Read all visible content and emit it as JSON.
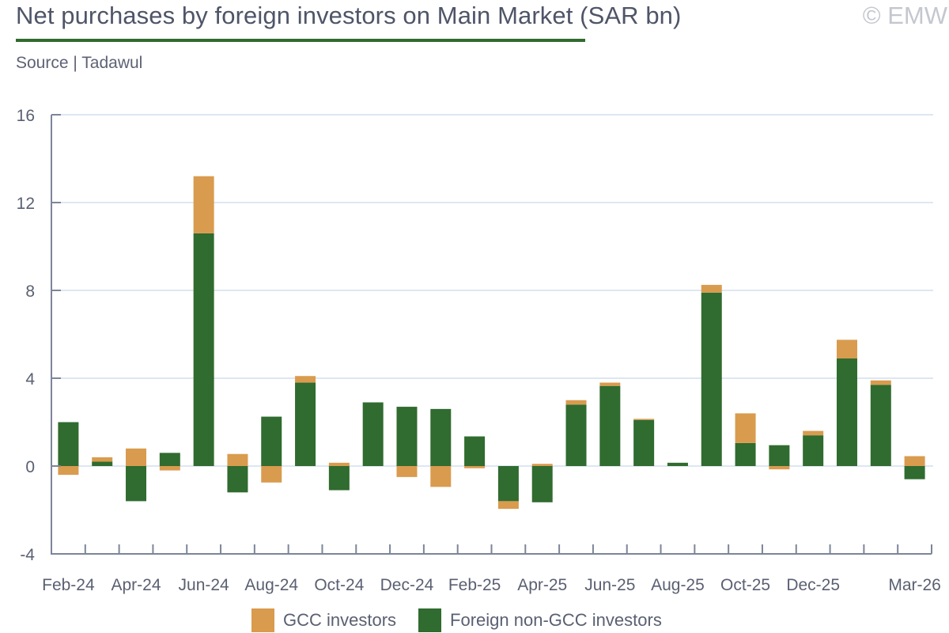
{
  "header": {
    "title": "Net purchases by foreign investors on Main Market (SAR bn)",
    "watermark": "© EMW",
    "source": "Source | Tadawul"
  },
  "colors": {
    "gcc": "#d99b4e",
    "non_gcc": "#306b2f",
    "title_rule": "#306b2f",
    "grid": "#dde7f2",
    "axis": "#7d8599",
    "text": "#5a6072"
  },
  "chart_data": {
    "type": "bar",
    "stacked": true,
    "title": "Net purchases by foreign investors on Main Market (SAR bn)",
    "xlabel": "",
    "ylabel": "",
    "ylim": [
      -4,
      16
    ],
    "yticks": [
      16,
      12,
      8,
      4,
      0,
      -4
    ],
    "grid": true,
    "legend_position": "bottom",
    "categories": [
      "Feb-24",
      "Mar-24",
      "Apr-24",
      "May-24",
      "Jun-24",
      "Jul-24",
      "Aug-24",
      "Sep-24",
      "Oct-24",
      "Nov-24",
      "Dec-24",
      "Jan-25",
      "Feb-25",
      "Mar-25",
      "Apr-25",
      "May-25",
      "Jun-25",
      "Jul-25",
      "Aug-25",
      "Sep-25",
      "Oct-25",
      "Nov-25",
      "Dec-25",
      "Jan-26",
      "Feb-26",
      "Mar-26"
    ],
    "xtick_labels": [
      {
        "index": 0,
        "label": "Feb-24"
      },
      {
        "index": 2,
        "label": "Apr-24"
      },
      {
        "index": 4,
        "label": "Jun-24"
      },
      {
        "index": 6,
        "label": "Aug-24"
      },
      {
        "index": 8,
        "label": "Oct-24"
      },
      {
        "index": 10,
        "label": "Dec-24"
      },
      {
        "index": 12,
        "label": "Feb-25"
      },
      {
        "index": 14,
        "label": "Apr-25"
      },
      {
        "index": 16,
        "label": "Jun-25"
      },
      {
        "index": 18,
        "label": "Aug-25"
      },
      {
        "index": 20,
        "label": "Oct-25"
      },
      {
        "index": 22,
        "label": "Dec-25"
      },
      {
        "index": 25,
        "label": "Mar-26"
      }
    ],
    "series": [
      {
        "name": "Foreign non-GCC investors",
        "key": "non_gcc",
        "values": [
          2.0,
          0.2,
          -1.6,
          0.6,
          10.6,
          -1.2,
          2.25,
          3.8,
          -1.1,
          2.9,
          2.7,
          2.6,
          1.35,
          -1.6,
          -1.65,
          2.8,
          3.65,
          2.1,
          0.15,
          7.9,
          1.05,
          0.95,
          1.4,
          4.9,
          3.7,
          -0.6
        ]
      },
      {
        "name": "GCC investors",
        "key": "gcc",
        "values": [
          -0.4,
          0.2,
          0.8,
          -0.2,
          2.6,
          0.55,
          -0.75,
          0.3,
          0.15,
          0.0,
          -0.5,
          -0.95,
          -0.1,
          -0.35,
          0.1,
          0.2,
          0.15,
          0.05,
          0.0,
          0.35,
          1.35,
          -0.15,
          0.2,
          0.85,
          0.2,
          0.45
        ]
      }
    ]
  },
  "legend": [
    {
      "label": "GCC investors",
      "key": "gcc"
    },
    {
      "label": "Foreign non-GCC investors",
      "key": "non_gcc"
    }
  ]
}
